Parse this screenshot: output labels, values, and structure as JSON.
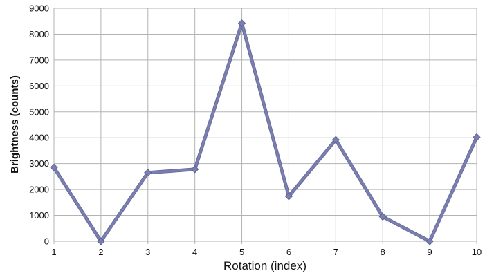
{
  "chart_data": {
    "type": "line",
    "title": "",
    "xlabel": "Rotation  (index)",
    "ylabel": "Brightness (counts)",
    "x": [
      1,
      2,
      3,
      4,
      5,
      6,
      7,
      8,
      9,
      10
    ],
    "xlim": [
      1,
      10
    ],
    "ylim": [
      0,
      9000
    ],
    "yticks": [
      0,
      1000,
      2000,
      3000,
      4000,
      5000,
      6000,
      7000,
      8000,
      9000
    ],
    "grid": true,
    "legend": "none",
    "marker": "diamond",
    "line_color": "#7b7fb0",
    "series": [
      {
        "values": [
          2850,
          0,
          2650,
          2780,
          8420,
          1740,
          3920,
          950,
          0,
          4020
        ]
      }
    ]
  }
}
